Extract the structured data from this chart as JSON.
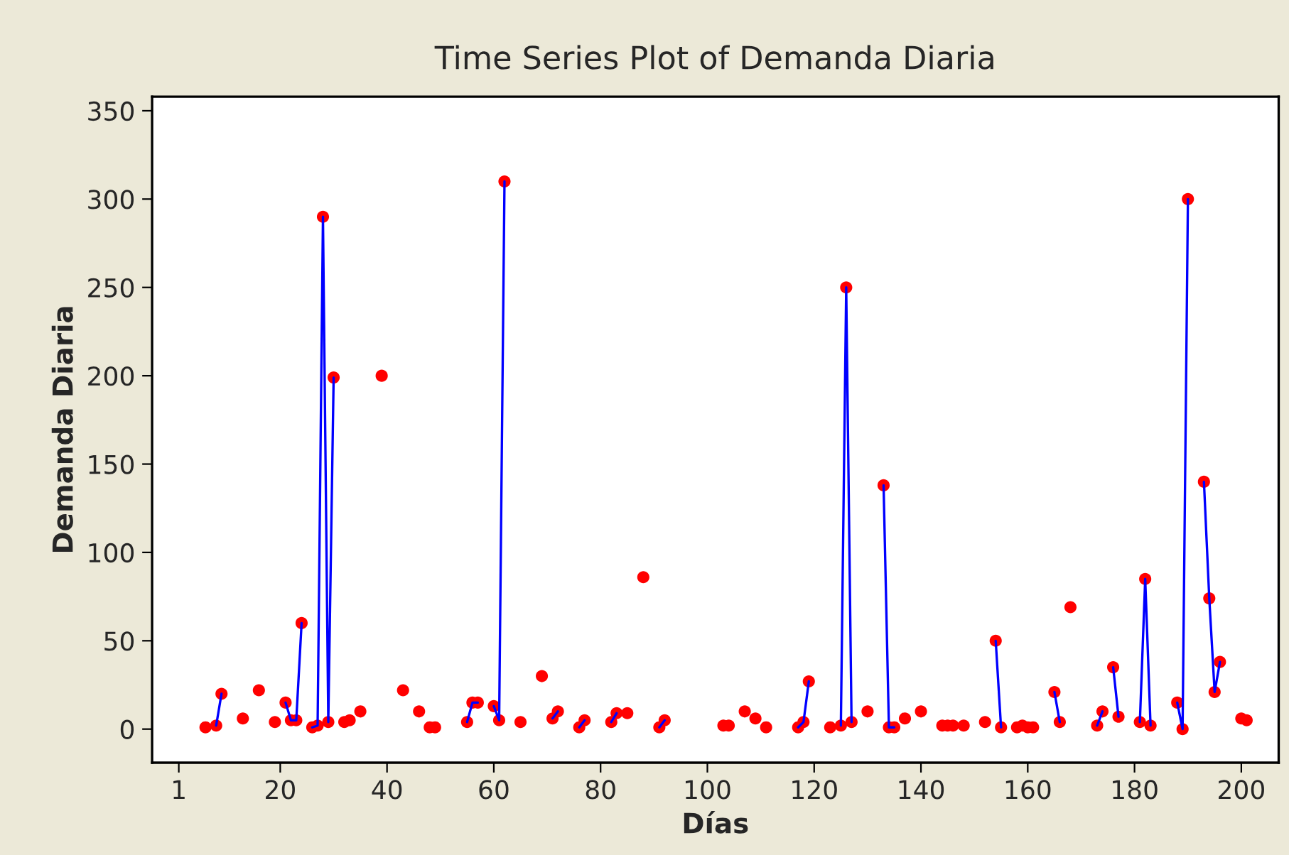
{
  "chart_data": {
    "type": "line",
    "title": "Time Series Plot of Demanda Diaria",
    "xlabel": "Días",
    "ylabel": "Demanda Diaria",
    "xlim": [
      -4,
      207
    ],
    "xticks": [
      1,
      20,
      40,
      60,
      80,
      100,
      120,
      140,
      160,
      180,
      200
    ],
    "ylim": [
      -19,
      358
    ],
    "yticks": [
      0,
      50,
      100,
      150,
      200,
      250,
      300,
      350
    ],
    "grid": false,
    "legend": false,
    "line_style": "solid",
    "series": [
      {
        "color": "#0000ff",
        "marker": "none",
        "x": [
          8,
          9,
          10,
          21,
          22,
          23,
          24,
          25,
          26,
          27,
          28,
          29,
          30,
          31,
          55,
          56,
          57,
          58,
          60,
          61,
          62,
          63,
          71,
          72,
          73,
          76,
          77,
          78,
          82,
          83,
          84,
          91,
          92,
          93,
          117,
          118,
          119,
          120,
          125,
          126,
          127,
          128,
          133,
          134,
          135,
          136,
          154,
          155,
          156,
          165,
          166,
          167,
          173,
          174,
          175,
          176,
          177,
          178,
          181,
          182,
          183,
          184,
          188,
          189,
          190,
          191,
          193,
          194,
          195,
          196
        ],
        "values": [
          2,
          20,
          null,
          15,
          5,
          5,
          60,
          null,
          1,
          2,
          290,
          4,
          199,
          null,
          4,
          15,
          15,
          null,
          13,
          5,
          310,
          null,
          6,
          10,
          null,
          1,
          5,
          null,
          4,
          9,
          null,
          1,
          5,
          null,
          1,
          4,
          27,
          null,
          2,
          250,
          4,
          null,
          138,
          1,
          1,
          null,
          50,
          1,
          null,
          21,
          4,
          null,
          2,
          10,
          null,
          35,
          7,
          null,
          4,
          85,
          2,
          null,
          15,
          0,
          300,
          null,
          140,
          74,
          21,
          38
        ]
      },
      {
        "type": "scatter",
        "color": "#ff0000",
        "marker": "circle",
        "x": [
          6,
          8,
          9,
          13,
          16,
          19,
          21,
          22,
          23,
          24,
          26,
          27,
          28,
          29,
          30,
          32,
          33,
          35,
          39,
          43,
          46,
          48,
          49,
          55,
          56,
          57,
          60,
          61,
          62,
          65,
          69,
          71,
          72,
          76,
          77,
          82,
          83,
          85,
          88,
          91,
          92,
          103,
          104,
          107,
          109,
          111,
          117,
          118,
          119,
          123,
          125,
          126,
          127,
          130,
          133,
          134,
          135,
          137,
          140,
          144,
          145,
          146,
          148,
          152,
          154,
          155,
          158,
          159,
          160,
          161,
          165,
          166,
          168,
          173,
          174,
          176,
          177,
          181,
          182,
          183,
          188,
          189,
          190,
          193,
          194,
          195,
          196,
          200,
          201
        ],
        "values": [
          1,
          2,
          20,
          6,
          22,
          4,
          15,
          5,
          5,
          60,
          1,
          2,
          290,
          4,
          199,
          4,
          5,
          10,
          200,
          22,
          10,
          1,
          1,
          4,
          15,
          15,
          13,
          5,
          310,
          4,
          30,
          6,
          10,
          1,
          5,
          4,
          9,
          9,
          86,
          1,
          5,
          2,
          2,
          10,
          6,
          1,
          1,
          4,
          27,
          1,
          2,
          250,
          4,
          10,
          138,
          1,
          1,
          6,
          10,
          2,
          2,
          2,
          2,
          4,
          50,
          1,
          1,
          2,
          1,
          1,
          21,
          4,
          69,
          2,
          10,
          35,
          7,
          4,
          85,
          2,
          15,
          0,
          300,
          140,
          74,
          21,
          38,
          6,
          5
        ]
      }
    ]
  }
}
